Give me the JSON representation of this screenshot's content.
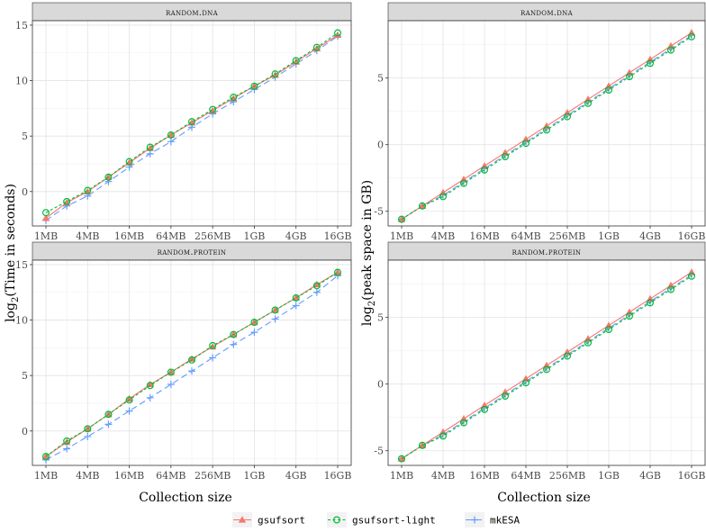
{
  "chart_data": [
    {
      "type": "line",
      "panel": "top-left",
      "title": "random.dna",
      "ylabel": "log2(Time in seconds)",
      "xlabel": "",
      "x_tick_labels": [
        "1MB",
        "4MB",
        "16MB",
        "64MB",
        "256MB",
        "1GB",
        "4GB",
        "16GB"
      ],
      "y_ticks": [
        0,
        5,
        10,
        15
      ],
      "ylim": [
        -3.1,
        15.4
      ],
      "series": [
        {
          "name": "gsufsort",
          "values": [
            -2.4,
            -1.0,
            0.0,
            1.3,
            2.6,
            3.9,
            5.1,
            6.2,
            7.3,
            8.4,
            9.5,
            10.5,
            11.7,
            12.9,
            14.1
          ]
        },
        {
          "name": "gsufsort-light",
          "values": [
            -1.9,
            -0.9,
            0.1,
            1.3,
            2.7,
            4.0,
            5.1,
            6.3,
            7.4,
            8.5,
            9.5,
            10.6,
            11.8,
            13.0,
            14.3
          ]
        },
        {
          "name": "mkESA",
          "values": [
            -2.6,
            -1.3,
            -0.4,
            0.9,
            2.2,
            3.4,
            4.5,
            5.8,
            7.0,
            8.1,
            9.2,
            10.3,
            11.5,
            12.7,
            14.0
          ]
        }
      ]
    },
    {
      "type": "line",
      "panel": "top-right",
      "title": "random.dna",
      "ylabel": "log2(peak space in GB)",
      "xlabel": "",
      "x_tick_labels": [
        "1MB",
        "4MB",
        "16MB",
        "64MB",
        "256MB",
        "1GB",
        "4GB",
        "16GB"
      ],
      "y_ticks": [
        -5,
        0,
        5
      ],
      "ylim": [
        -6.1,
        9.3
      ],
      "series": [
        {
          "name": "gsufsort",
          "values": [
            -5.6,
            -4.6,
            -3.6,
            -2.6,
            -1.6,
            -0.6,
            0.4,
            1.4,
            2.4,
            3.4,
            4.4,
            5.4,
            6.4,
            7.4,
            8.4
          ]
        },
        {
          "name": "gsufsort-light",
          "values": [
            -5.6,
            -4.6,
            -3.9,
            -2.9,
            -1.9,
            -0.9,
            0.1,
            1.1,
            2.1,
            3.1,
            4.1,
            5.1,
            6.1,
            7.1,
            8.1
          ]
        },
        {
          "name": "mkESA",
          "values": [
            -5.6,
            -4.6,
            -3.8,
            -2.8,
            -1.8,
            -0.8,
            0.2,
            1.2,
            2.2,
            3.2,
            4.2,
            5.2,
            6.2,
            7.2,
            8.2
          ]
        }
      ]
    },
    {
      "type": "line",
      "panel": "bottom-left",
      "title": "random.protein",
      "ylabel": "log2(Time in seconds)",
      "xlabel": "Collection size",
      "x_tick_labels": [
        "1MB",
        "4MB",
        "16MB",
        "64MB",
        "256MB",
        "1GB",
        "4GB",
        "16GB"
      ],
      "y_ticks": [
        0,
        5,
        10,
        15
      ],
      "ylim": [
        -3.1,
        15.4
      ],
      "series": [
        {
          "name": "gsufsort",
          "values": [
            -2.3,
            -1.0,
            0.2,
            1.5,
            2.9,
            4.2,
            5.3,
            6.5,
            7.6,
            8.7,
            9.8,
            10.9,
            12.0,
            13.2,
            14.3
          ]
        },
        {
          "name": "gsufsort-light",
          "values": [
            -2.3,
            -0.9,
            0.2,
            1.5,
            2.8,
            4.1,
            5.3,
            6.4,
            7.7,
            8.7,
            9.8,
            10.9,
            12.0,
            13.1,
            14.3
          ]
        },
        {
          "name": "mkESA",
          "values": [
            -2.6,
            -1.6,
            -0.5,
            0.6,
            1.8,
            3.0,
            4.2,
            5.4,
            6.6,
            7.8,
            8.9,
            10.1,
            11.3,
            12.5,
            14.0
          ]
        }
      ]
    },
    {
      "type": "line",
      "panel": "bottom-right",
      "title": "random.protein",
      "ylabel": "log2(peak space in GB)",
      "xlabel": "Collection size",
      "x_tick_labels": [
        "1MB",
        "4MB",
        "16MB",
        "64MB",
        "256MB",
        "1GB",
        "4GB",
        "16GB"
      ],
      "y_ticks": [
        -5,
        0,
        5
      ],
      "ylim": [
        -6.1,
        9.3
      ],
      "series": [
        {
          "name": "gsufsort",
          "values": [
            -5.6,
            -4.6,
            -3.6,
            -2.6,
            -1.6,
            -0.6,
            0.4,
            1.4,
            2.4,
            3.4,
            4.4,
            5.4,
            6.4,
            7.4,
            8.4
          ]
        },
        {
          "name": "gsufsort-light",
          "values": [
            -5.6,
            -4.6,
            -3.9,
            -2.9,
            -1.9,
            -0.9,
            0.1,
            1.1,
            2.1,
            3.1,
            4.1,
            5.1,
            6.1,
            7.1,
            8.1
          ]
        },
        {
          "name": "mkESA",
          "values": [
            -5.6,
            -4.6,
            -3.8,
            -2.8,
            -1.8,
            -0.8,
            0.2,
            1.2,
            2.2,
            3.2,
            4.2,
            5.2,
            6.2,
            7.2,
            8.2
          ]
        }
      ]
    }
  ],
  "shared": {
    "x_count": 15,
    "xlabel": "Collection size",
    "ylabel_left": "log2(Time in seconds)",
    "ylabel_right": "log2(peak space in GB)",
    "grid": true,
    "legend_position": "bottom"
  },
  "legend": [
    {
      "name": "gsufsort",
      "color": "#F8766D",
      "marker": "triangle",
      "dash": "solid"
    },
    {
      "name": "gsufsort-light",
      "color": "#00BA38",
      "marker": "circle",
      "dash": "dashed"
    },
    {
      "name": "mkESA",
      "color": "#619CFF",
      "marker": "plus",
      "dash": "longdash"
    }
  ]
}
